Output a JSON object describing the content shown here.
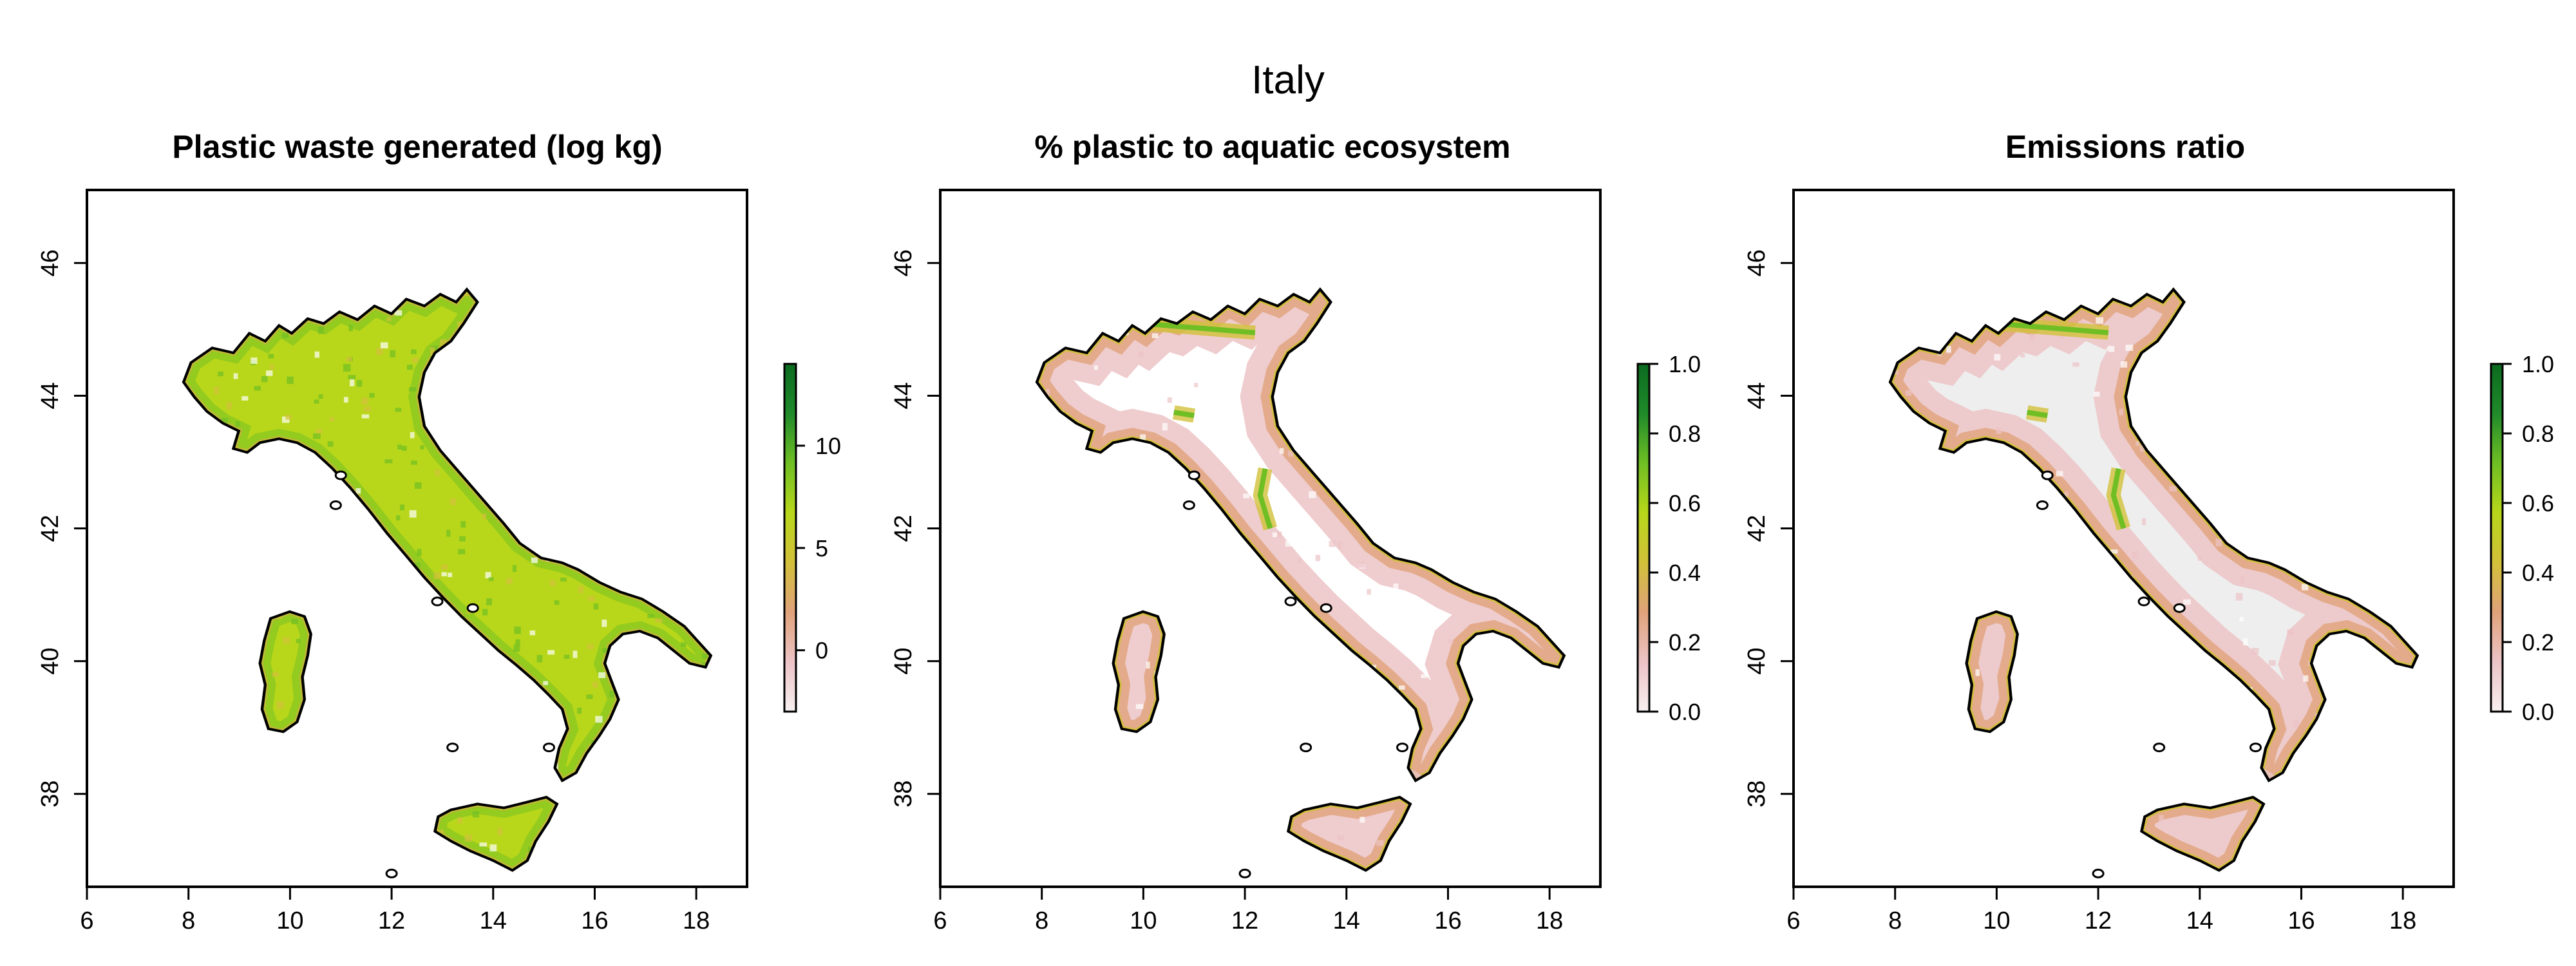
{
  "figure": {
    "title": "Italy"
  },
  "panels": [
    {
      "id": "waste",
      "title": "Plastic waste generated (log kg)",
      "x_ticks": [
        "6",
        "8",
        "10",
        "12",
        "14",
        "16",
        "18"
      ],
      "y_ticks": [
        "38",
        "40",
        "42",
        "44",
        "46"
      ],
      "legend": {
        "ticks": [
          "0",
          "5",
          "10"
        ],
        "range": [
          -3,
          14
        ],
        "colors": [
          "#f7f0f0",
          "#ecc3c6",
          "#e0a27a",
          "#d2c03a",
          "#b8d71a",
          "#6fbf24",
          "#1f8a2a",
          "#0b6b1f"
        ]
      }
    },
    {
      "id": "aquatic",
      "title": "% plastic to aquatic ecosystem",
      "x_ticks": [
        "6",
        "8",
        "10",
        "12",
        "14",
        "16",
        "18"
      ],
      "y_ticks": [
        "38",
        "40",
        "42",
        "44",
        "46"
      ],
      "legend": {
        "ticks": [
          "0.0",
          "0.2",
          "0.4",
          "0.6",
          "0.8",
          "1.0"
        ],
        "range": [
          0,
          1
        ],
        "colors": [
          "#f7f0f0",
          "#ecc3c6",
          "#e0a27a",
          "#d2c03a",
          "#b8d71a",
          "#6fbf24",
          "#1f8a2a",
          "#0b6b1f"
        ]
      }
    },
    {
      "id": "ratio",
      "title": "Emissions ratio",
      "x_ticks": [
        "6",
        "8",
        "10",
        "12",
        "14",
        "16",
        "18"
      ],
      "y_ticks": [
        "38",
        "40",
        "42",
        "44",
        "46"
      ],
      "legend": {
        "ticks": [
          "0.0",
          "0.2",
          "0.4",
          "0.6",
          "0.8",
          "1.0"
        ],
        "range": [
          0,
          1
        ],
        "colors": [
          "#f7f0f0",
          "#ecc3c6",
          "#e0a27a",
          "#d2c03a",
          "#b8d71a",
          "#6fbf24",
          "#1f8a2a",
          "#0b6b1f"
        ]
      }
    }
  ]
}
